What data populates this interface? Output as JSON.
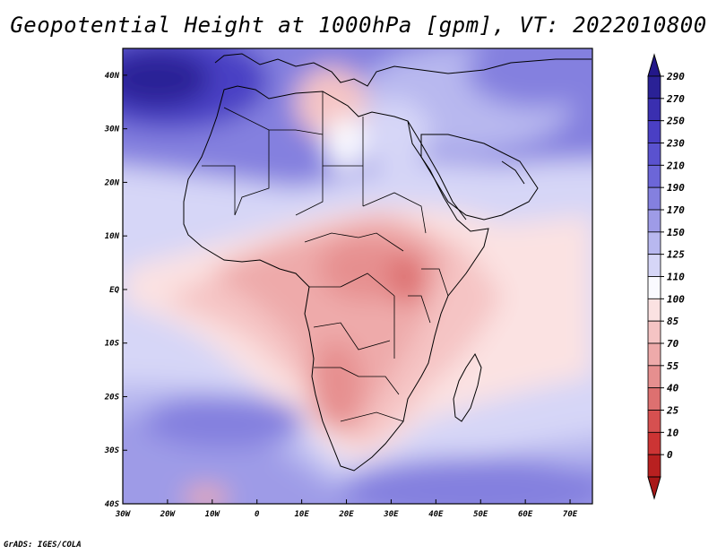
{
  "title": "Geopotential Height at 1000hPa [gpm], VT: 2022010800",
  "credit": "GrADS: IGES/COLA",
  "map": {
    "lon_range": [
      -30,
      75
    ],
    "lat_range": [
      -40,
      45
    ],
    "lon_ticks": [
      {
        "value": -30,
        "label": "30W"
      },
      {
        "value": -20,
        "label": "20W"
      },
      {
        "value": -10,
        "label": "10W"
      },
      {
        "value": 0,
        "label": "0"
      },
      {
        "value": 10,
        "label": "10E"
      },
      {
        "value": 20,
        "label": "20E"
      },
      {
        "value": 30,
        "label": "30E"
      },
      {
        "value": 40,
        "label": "40E"
      },
      {
        "value": 50,
        "label": "50E"
      },
      {
        "value": 60,
        "label": "60E"
      },
      {
        "value": 70,
        "label": "70E"
      }
    ],
    "lat_ticks": [
      {
        "value": 40,
        "label": "40N"
      },
      {
        "value": 30,
        "label": "30N"
      },
      {
        "value": 20,
        "label": "20N"
      },
      {
        "value": 10,
        "label": "10N"
      },
      {
        "value": 0,
        "label": "EQ"
      },
      {
        "value": -10,
        "label": "10S"
      },
      {
        "value": -20,
        "label": "20S"
      },
      {
        "value": -30,
        "label": "30S"
      },
      {
        "value": -40,
        "label": "40S"
      }
    ]
  },
  "colorbar": {
    "levels": [
      {
        "label": "290",
        "color": "#2a2196"
      },
      {
        "label": "270",
        "color": "#3a2fb0"
      },
      {
        "label": "250",
        "color": "#4a3fc4"
      },
      {
        "label": "230",
        "color": "#5a52cf"
      },
      {
        "label": "210",
        "color": "#6c66d8"
      },
      {
        "label": "190",
        "color": "#8480df"
      },
      {
        "label": "170",
        "color": "#9e9be7"
      },
      {
        "label": "150",
        "color": "#b8b8ef"
      },
      {
        "label": "125",
        "color": "#d6d6f7"
      },
      {
        "label": "110",
        "color": "#fafaff"
      },
      {
        "label": "100",
        "color": "#fbe2e2"
      },
      {
        "label": "85",
        "color": "#f5c4c4"
      },
      {
        "label": "70",
        "color": "#eeaaaa"
      },
      {
        "label": "55",
        "color": "#e68f8f"
      },
      {
        "label": "40",
        "color": "#dd7070"
      },
      {
        "label": "25",
        "color": "#d65050"
      },
      {
        "label": "10",
        "color": "#cc3434"
      },
      {
        "label": "0",
        "color": "#b82020"
      }
    ],
    "top_color": "#23178a",
    "bottom_color": "#a81818"
  }
}
